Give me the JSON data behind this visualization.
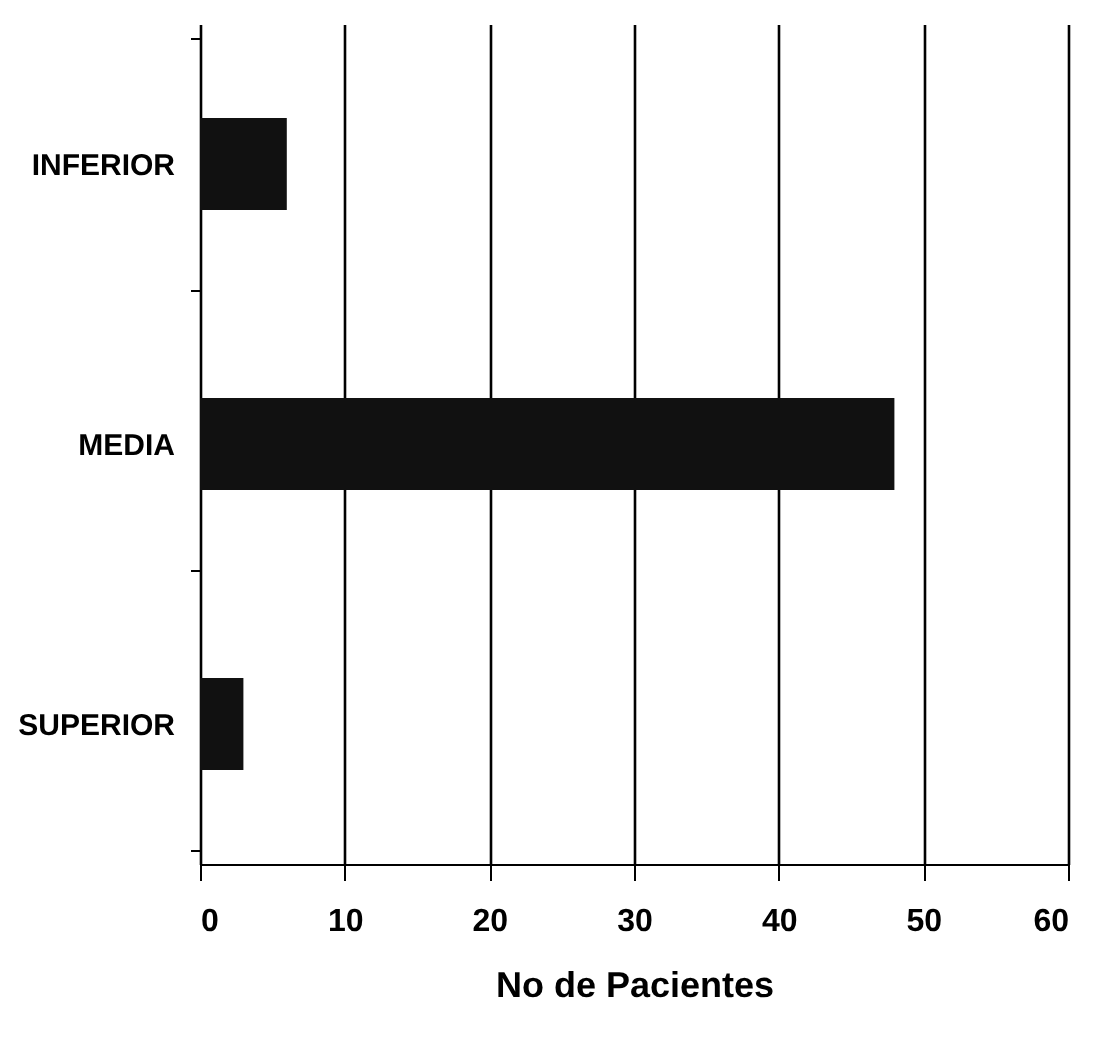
{
  "chart_data": {
    "type": "bar",
    "orientation": "horizontal",
    "categories": [
      "INFERIOR",
      "MEDIA",
      "SUPERIOR"
    ],
    "values": [
      6,
      48,
      3
    ],
    "color": "#111111",
    "xlim": [
      0,
      60
    ],
    "xticks": [
      0,
      10,
      20,
      30,
      40,
      50,
      60
    ],
    "xlabel": "No de Pacientes",
    "grid": "x"
  }
}
